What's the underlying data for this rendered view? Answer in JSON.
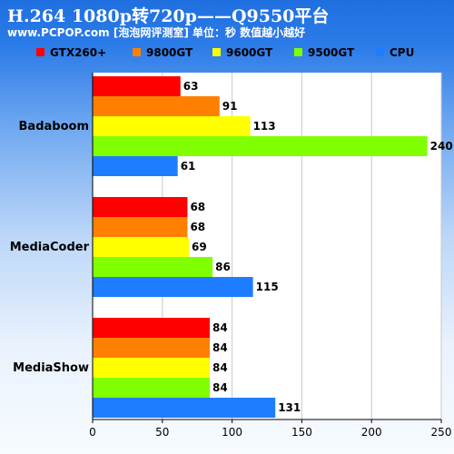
{
  "header": {
    "title": "H.264 1080p转720p——Q9550平台",
    "subtitle": "www.PCPOP.com [泡泡网评测室] 单位：秒  数值越小越好"
  },
  "chart_data": {
    "type": "bar",
    "orientation": "horizontal",
    "categories": [
      "Badaboom",
      "MediaCoder",
      "MediaShow"
    ],
    "series": [
      {
        "name": "GTX260+",
        "color": "#ff0000",
        "values": [
          63,
          68,
          84
        ]
      },
      {
        "name": "9800GT",
        "color": "#ff8000",
        "values": [
          91,
          68,
          84
        ]
      },
      {
        "name": "9600GT",
        "color": "#ffff00",
        "values": [
          113,
          69,
          84
        ]
      },
      {
        "name": "9500GT",
        "color": "#80ff00",
        "values": [
          240,
          86,
          84
        ]
      },
      {
        "name": "CPU",
        "color": "#1e7dff",
        "values": [
          61,
          115,
          131
        ]
      }
    ],
    "xlim": [
      0,
      250
    ],
    "xticks": [
      0,
      50,
      100,
      150,
      200,
      250
    ],
    "grid": true,
    "legend": "top"
  }
}
